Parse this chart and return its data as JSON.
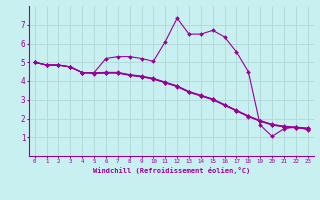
{
  "xlabel": "Windchill (Refroidissement éolien,°C)",
  "bg_color": "#c8f0f0",
  "line_color": "#990099",
  "grid_color": "#b0d8d8",
  "xlim": [
    -0.5,
    23.5
  ],
  "ylim": [
    0,
    8
  ],
  "xticks": [
    0,
    1,
    2,
    3,
    4,
    5,
    6,
    7,
    8,
    9,
    10,
    11,
    12,
    13,
    14,
    15,
    16,
    17,
    18,
    19,
    20,
    21,
    22,
    23
  ],
  "yticks": [
    1,
    2,
    3,
    4,
    5,
    6,
    7
  ],
  "lines": [
    {
      "x": [
        0,
        1,
        2,
        3,
        4,
        5,
        6,
        7,
        8,
        9,
        10,
        11,
        12,
        13,
        14,
        15,
        16,
        17,
        18,
        19,
        20,
        21,
        22,
        23
      ],
      "y": [
        5.0,
        4.85,
        4.85,
        4.75,
        4.45,
        4.45,
        5.2,
        5.3,
        5.3,
        5.2,
        5.05,
        6.1,
        7.35,
        6.5,
        6.5,
        6.7,
        6.35,
        5.55,
        4.5,
        1.65,
        1.05,
        1.45,
        1.55,
        1.4
      ]
    },
    {
      "x": [
        0,
        1,
        2,
        3,
        4,
        5,
        6,
        7,
        8,
        9,
        10,
        11,
        12,
        13,
        14,
        15,
        16,
        17,
        18,
        19,
        20,
        21,
        22,
        23
      ],
      "y": [
        5.0,
        4.85,
        4.85,
        4.75,
        4.45,
        4.4,
        4.42,
        4.42,
        4.3,
        4.22,
        4.1,
        3.9,
        3.7,
        3.4,
        3.2,
        3.0,
        2.7,
        2.4,
        2.1,
        1.85,
        1.65,
        1.55,
        1.5,
        1.45
      ]
    },
    {
      "x": [
        0,
        1,
        2,
        3,
        4,
        5,
        6,
        7,
        8,
        9,
        10,
        11,
        12,
        13,
        14,
        15,
        16,
        17,
        18,
        19,
        20,
        21,
        22,
        23
      ],
      "y": [
        5.0,
        4.85,
        4.85,
        4.75,
        4.45,
        4.42,
        4.44,
        4.44,
        4.32,
        4.24,
        4.12,
        3.92,
        3.72,
        3.42,
        3.22,
        3.02,
        2.72,
        2.42,
        2.12,
        1.87,
        1.67,
        1.57,
        1.52,
        1.47
      ]
    },
    {
      "x": [
        0,
        1,
        2,
        3,
        4,
        5,
        6,
        7,
        8,
        9,
        10,
        11,
        12,
        13,
        14,
        15,
        16,
        17,
        18,
        19,
        20,
        21,
        22,
        23
      ],
      "y": [
        5.0,
        4.85,
        4.85,
        4.75,
        4.45,
        4.44,
        4.46,
        4.46,
        4.34,
        4.26,
        4.14,
        3.94,
        3.74,
        3.44,
        3.24,
        3.04,
        2.74,
        2.44,
        2.14,
        1.89,
        1.69,
        1.59,
        1.54,
        1.49
      ]
    }
  ]
}
